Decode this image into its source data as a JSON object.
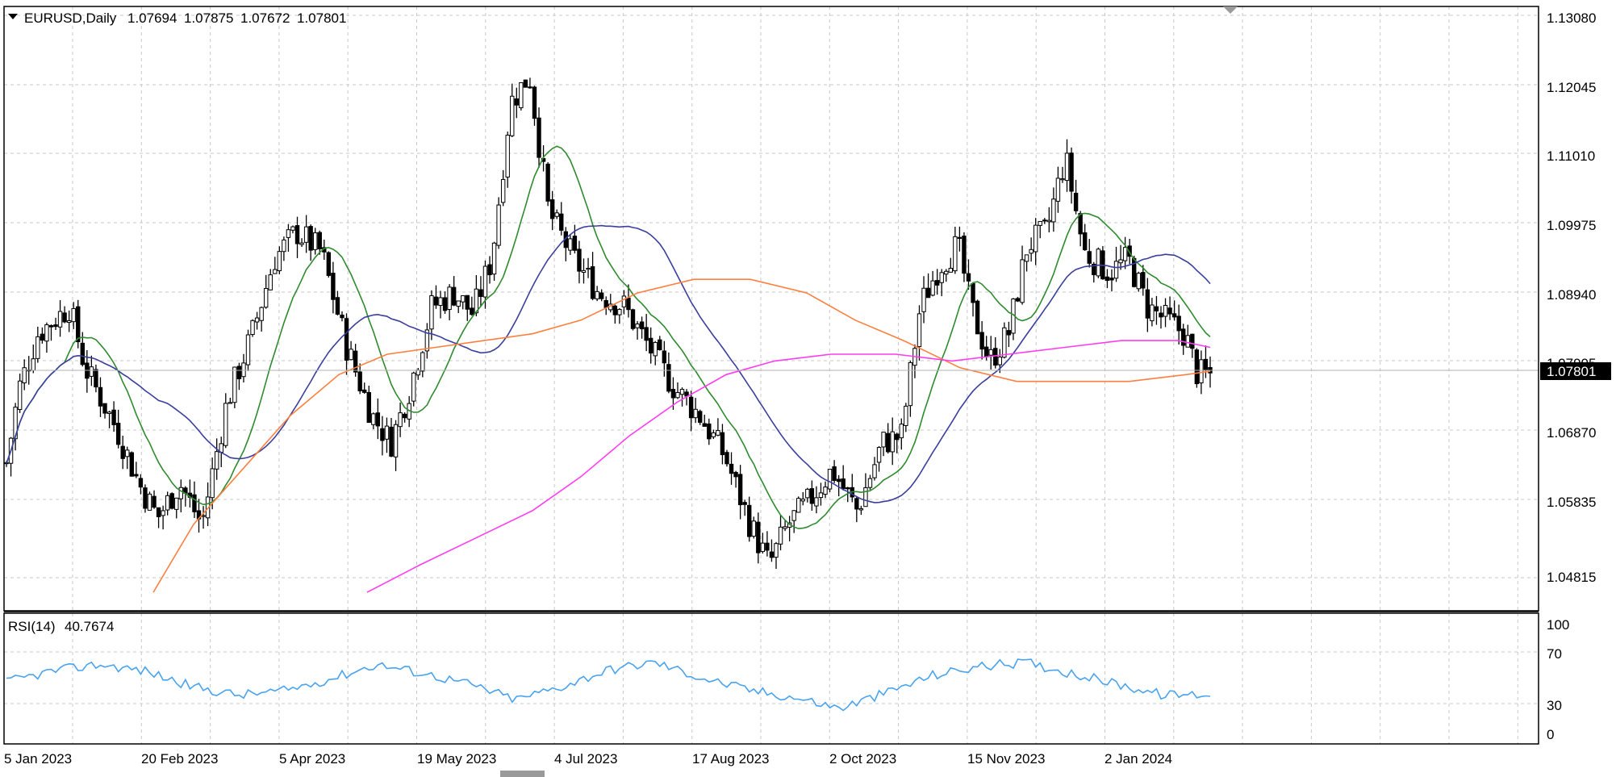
{
  "header": {
    "menu_icon": "triangle-down-icon",
    "symbol": "EURUSD,Daily",
    "open": "1.07694",
    "high": "1.07875",
    "low": "1.07672",
    "close": "1.07801"
  },
  "rsi_header": {
    "label": "RSI(14)",
    "value": "40.7674"
  },
  "price_axis": {
    "ticks": [
      "1.13080",
      "1.12045",
      "1.11010",
      "1.09975",
      "1.08940",
      "1.07905",
      "1.06870",
      "1.05835",
      "1.04815"
    ],
    "current_price_label": "1.07801"
  },
  "rsi_axis": {
    "ticks": [
      "100",
      "70",
      "30",
      "0"
    ]
  },
  "date_axis": {
    "labels": [
      "5 Jan 2023",
      "20 Feb 2023",
      "5 Apr 2023",
      "19 May 2023",
      "4 Jul 2023",
      "17 Aug 2023",
      "2 Oct 2023",
      "15 Nov 2023",
      "2 Jan 2024"
    ]
  },
  "colors": {
    "background": "#ffffff",
    "grid": "#c8c8c8",
    "candle": "#000000",
    "ma_green": "#2e8b2e",
    "ma_blue": "#3a3f9e",
    "ma_orange": "#ff7f3f",
    "ma_magenta": "#ff3cf0",
    "rsi_line": "#4aa3ef",
    "price_tag_bg": "#000000",
    "price_tag_text": "#ffffff"
  },
  "chart_data": [
    {
      "type": "candlestick",
      "title": "EURUSD,Daily",
      "x": [
        "5 Jan 2023",
        "20 Feb 2023",
        "5 Apr 2023",
        "19 May 2023",
        "4 Jul 2023",
        "17 Aug 2023",
        "2 Oct 2023",
        "15 Nov 2023",
        "2 Jan 2024",
        "24 Jan 2024"
      ],
      "y_approx_close": [
        1.065,
        1.064,
        1.086,
        1.072,
        1.12,
        1.08,
        1.053,
        1.098,
        1.095,
        1.078
      ],
      "ylim": [
        1.046,
        1.1308
      ],
      "last_ohlc": {
        "open": 1.07694,
        "high": 1.07875,
        "low": 1.07672,
        "close": 1.07801
      },
      "overlays": [
        {
          "color": "green"
        },
        {
          "color": "blue"
        },
        {
          "color": "orange"
        },
        {
          "color": "magenta"
        }
      ],
      "grid": true
    },
    {
      "type": "line",
      "title": "RSI(14) 40.7674",
      "series": [
        {
          "values": [
            52,
            62,
            68,
            62,
            48,
            40,
            44,
            55,
            68,
            60,
            50,
            36,
            48,
            63,
            70,
            56,
            45,
            38,
            28,
            42,
            58,
            66,
            70,
            60,
            50,
            40,
            41
          ]
        }
      ],
      "ylim": [
        0,
        100
      ],
      "levels": [
        70,
        30
      ],
      "grid": true
    }
  ]
}
